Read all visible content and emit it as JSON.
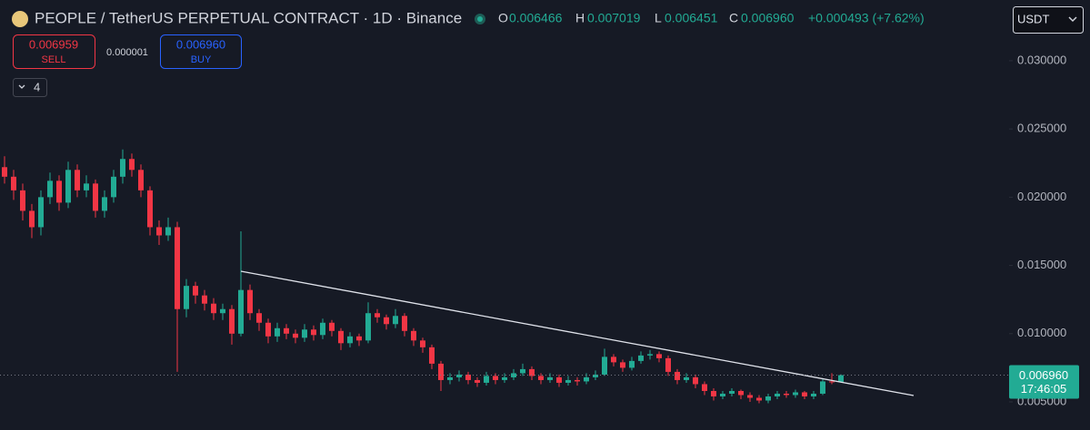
{
  "header": {
    "title": "PEOPLE / TetherUS PERPETUAL CONTRACT · 1D · Binance",
    "ohlc": [
      {
        "key": "O",
        "value": "0.006466"
      },
      {
        "key": "H",
        "value": "0.007019"
      },
      {
        "key": "L",
        "value": "0.006451"
      },
      {
        "key": "C",
        "value": "0.006960"
      }
    ],
    "change": "+0.000493 (+7.62%)",
    "currency": "USDT"
  },
  "trade": {
    "sell_price": "0.006959",
    "sell_label": "SELL",
    "spread": "0.000001",
    "buy_price": "0.006960",
    "buy_label": "BUY",
    "indicators": "4"
  },
  "chart_data": {
    "type": "candlestick",
    "up_color": "#22ab94",
    "down_color": "#f23645",
    "grid": false,
    "xlim": [
      -0.5,
      110.5
    ],
    "ylim": [
      0.00294,
      0.03445
    ],
    "yticks": [
      {
        "value": 0.005,
        "label": "0.005000"
      },
      {
        "value": 0.01,
        "label": "0.010000"
      },
      {
        "value": 0.015,
        "label": "0.015000"
      },
      {
        "value": 0.02,
        "label": "0.020000"
      },
      {
        "value": 0.025,
        "label": "0.025000"
      },
      {
        "value": 0.03,
        "label": "0.030000"
      }
    ],
    "candles": [
      [
        0.0222,
        0.023,
        0.021,
        0.0215
      ],
      [
        0.0215,
        0.022,
        0.0198,
        0.0205
      ],
      [
        0.0205,
        0.021,
        0.0183,
        0.019
      ],
      [
        0.019,
        0.0195,
        0.017,
        0.0178
      ],
      [
        0.0178,
        0.0205,
        0.0172,
        0.02
      ],
      [
        0.02,
        0.0218,
        0.0195,
        0.0212
      ],
      [
        0.0212,
        0.0216,
        0.019,
        0.0196
      ],
      [
        0.0196,
        0.0226,
        0.0192,
        0.022
      ],
      [
        0.022,
        0.0224,
        0.02,
        0.0205
      ],
      [
        0.0205,
        0.0216,
        0.02,
        0.021
      ],
      [
        0.021,
        0.0213,
        0.0185,
        0.019
      ],
      [
        0.019,
        0.0205,
        0.0185,
        0.02
      ],
      [
        0.02,
        0.022,
        0.0196,
        0.0215
      ],
      [
        0.0215,
        0.0235,
        0.021,
        0.0228
      ],
      [
        0.0228,
        0.0232,
        0.0215,
        0.022
      ],
      [
        0.022,
        0.0224,
        0.02,
        0.0205
      ],
      [
        0.0205,
        0.0208,
        0.0172,
        0.0178
      ],
      [
        0.0178,
        0.0183,
        0.0165,
        0.0172
      ],
      [
        0.0172,
        0.0185,
        0.0168,
        0.0178
      ],
      [
        0.0178,
        0.0182,
        0.0072,
        0.0118
      ],
      [
        0.0118,
        0.014,
        0.0112,
        0.0135
      ],
      [
        0.0135,
        0.0138,
        0.0122,
        0.0128
      ],
      [
        0.0128,
        0.0132,
        0.0117,
        0.0122
      ],
      [
        0.0122,
        0.0126,
        0.011,
        0.0115
      ],
      [
        0.0115,
        0.0122,
        0.011,
        0.0118
      ],
      [
        0.0118,
        0.0121,
        0.0092,
        0.01
      ],
      [
        0.01,
        0.0175,
        0.0098,
        0.0132
      ],
      [
        0.0132,
        0.0136,
        0.011,
        0.0115
      ],
      [
        0.0115,
        0.0118,
        0.0102,
        0.0108
      ],
      [
        0.0108,
        0.0111,
        0.0093,
        0.0098
      ],
      [
        0.0098,
        0.0108,
        0.0094,
        0.0104
      ],
      [
        0.0104,
        0.0107,
        0.0096,
        0.01
      ],
      [
        0.01,
        0.0103,
        0.0093,
        0.0097
      ],
      [
        0.0097,
        0.0107,
        0.0094,
        0.0103
      ],
      [
        0.0103,
        0.0106,
        0.0095,
        0.0099
      ],
      [
        0.0099,
        0.0111,
        0.0096,
        0.0108
      ],
      [
        0.0108,
        0.011,
        0.0098,
        0.0102
      ],
      [
        0.0102,
        0.0104,
        0.0088,
        0.0093
      ],
      [
        0.0093,
        0.0101,
        0.009,
        0.0098
      ],
      [
        0.0098,
        0.01,
        0.0091,
        0.0095
      ],
      [
        0.0095,
        0.0123,
        0.0093,
        0.0115
      ],
      [
        0.0115,
        0.0118,
        0.0108,
        0.0112
      ],
      [
        0.0112,
        0.0114,
        0.0103,
        0.0107
      ],
      [
        0.0107,
        0.0118,
        0.0104,
        0.0113
      ],
      [
        0.0113,
        0.0115,
        0.0098,
        0.0102
      ],
      [
        0.0102,
        0.0104,
        0.0091,
        0.0095
      ],
      [
        0.0095,
        0.0097,
        0.0086,
        0.009
      ],
      [
        0.009,
        0.0092,
        0.0074,
        0.0078
      ],
      [
        0.0078,
        0.008,
        0.0058,
        0.0066
      ],
      [
        0.0066,
        0.0071,
        0.0063,
        0.0068
      ],
      [
        0.0068,
        0.0073,
        0.0065,
        0.007
      ],
      [
        0.007,
        0.0072,
        0.0063,
        0.0066
      ],
      [
        0.0066,
        0.0068,
        0.0061,
        0.0064
      ],
      [
        0.0064,
        0.0072,
        0.0062,
        0.0069
      ],
      [
        0.0069,
        0.0071,
        0.0063,
        0.0066
      ],
      [
        0.0066,
        0.0071,
        0.0064,
        0.0068
      ],
      [
        0.0068,
        0.0074,
        0.0066,
        0.0071
      ],
      [
        0.0071,
        0.0078,
        0.0069,
        0.0074
      ],
      [
        0.0074,
        0.0076,
        0.0066,
        0.0069
      ],
      [
        0.0069,
        0.0071,
        0.0063,
        0.0066
      ],
      [
        0.0066,
        0.0071,
        0.0064,
        0.0068
      ],
      [
        0.0068,
        0.007,
        0.0061,
        0.0064
      ],
      [
        0.0064,
        0.0069,
        0.0062,
        0.0066
      ],
      [
        0.0066,
        0.0068,
        0.0062,
        0.0065
      ],
      [
        0.0065,
        0.0071,
        0.0063,
        0.0068
      ],
      [
        0.0068,
        0.0073,
        0.0066,
        0.007
      ],
      [
        0.007,
        0.0089,
        0.0069,
        0.0083
      ],
      [
        0.0083,
        0.0085,
        0.0076,
        0.0079
      ],
      [
        0.0079,
        0.0081,
        0.0072,
        0.0075
      ],
      [
        0.0075,
        0.0083,
        0.0073,
        0.008
      ],
      [
        0.008,
        0.0087,
        0.0078,
        0.0084
      ],
      [
        0.0084,
        0.0088,
        0.0081,
        0.0085
      ],
      [
        0.0085,
        0.0087,
        0.0079,
        0.0082
      ],
      [
        0.0082,
        0.0084,
        0.0069,
        0.0072
      ],
      [
        0.0072,
        0.0074,
        0.0063,
        0.0066
      ],
      [
        0.0066,
        0.0071,
        0.0064,
        0.0068
      ],
      [
        0.0068,
        0.007,
        0.006,
        0.0063
      ],
      [
        0.0063,
        0.0065,
        0.0055,
        0.0058
      ],
      [
        0.0058,
        0.006,
        0.0051,
        0.0054
      ],
      [
        0.0054,
        0.0058,
        0.0052,
        0.0056
      ],
      [
        0.0056,
        0.006,
        0.0054,
        0.0058
      ],
      [
        0.0058,
        0.0059,
        0.0052,
        0.0055
      ],
      [
        0.0055,
        0.0057,
        0.005,
        0.0053
      ],
      [
        0.0053,
        0.0055,
        0.0049,
        0.0051
      ],
      [
        0.0051,
        0.0056,
        0.0049,
        0.0054
      ],
      [
        0.0054,
        0.0058,
        0.0052,
        0.0056
      ],
      [
        0.0056,
        0.0058,
        0.0053,
        0.0055
      ],
      [
        0.0055,
        0.0059,
        0.0053,
        0.0057
      ],
      [
        0.0057,
        0.0058,
        0.0052,
        0.0054
      ],
      [
        0.0054,
        0.0058,
        0.0052,
        0.0056
      ],
      [
        0.0056,
        0.0067,
        0.0055,
        0.0065
      ],
      [
        0.0065,
        0.0071,
        0.0063,
        0.006466
      ],
      [
        0.006466,
        0.007019,
        0.006451,
        0.00696
      ]
    ],
    "trendline": {
      "x": [
        26,
        100
      ],
      "y": [
        0.014574,
        0.005465
      ],
      "color": "#e0e3eb"
    },
    "price_tag": {
      "label": "0.006960",
      "countdown": "17:46:05",
      "color": "#22ab94"
    }
  }
}
